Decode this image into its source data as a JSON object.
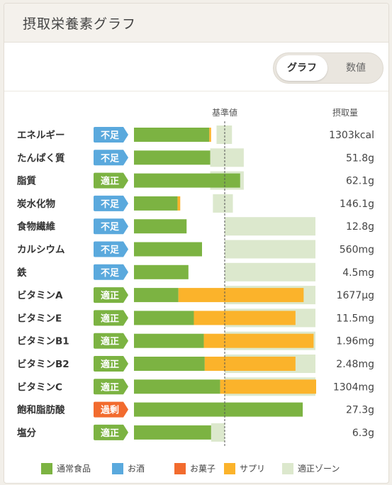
{
  "header": {
    "title": "摂取栄養素グラフ"
  },
  "toggle": {
    "graph_label": "グラフ",
    "value_label": "数値"
  },
  "colors": {
    "regular": "#7cb342",
    "alcohol": "#5aa9dd",
    "snack": "#f26b2e",
    "supplement": "#fbb32b",
    "zone": "#dce8cd",
    "status_low": "#5aa9dd",
    "status_ok": "#7cb342",
    "status_over": "#f26b2e"
  },
  "chart_data": {
    "type": "bar",
    "orientation": "horizontal",
    "stacked": true,
    "reference_label": "基準値",
    "intake_label": "摂取量",
    "rows": [
      {
        "name": "エネルギー",
        "status": "不足",
        "status_type": "low",
        "intake": "1303kcal",
        "regular": 0.83,
        "supplement": 0.02,
        "zone": [
          0.91,
          1.08
        ]
      },
      {
        "name": "たんぱく質",
        "status": "不足",
        "status_type": "low",
        "intake": "51.8g",
        "regular": 0.84,
        "supplement": 0,
        "zone": [
          0.84,
          1.21
        ]
      },
      {
        "name": "脂質",
        "status": "適正",
        "status_type": "ok",
        "intake": "62.1g",
        "regular": 1.17,
        "supplement": 0,
        "zone": [
          0.84,
          1.21
        ]
      },
      {
        "name": "炭水化物",
        "status": "不足",
        "status_type": "low",
        "intake": "146.1g",
        "regular": 0.48,
        "supplement": 0.03,
        "zone": [
          0.87,
          1.09
        ]
      },
      {
        "name": "食物繊維",
        "status": "不足",
        "status_type": "low",
        "intake": "12.8g",
        "regular": 0.58,
        "supplement": 0,
        "zone": [
          1.0,
          2.0
        ]
      },
      {
        "name": "カルシウム",
        "status": "不足",
        "status_type": "low",
        "intake": "560mg",
        "regular": 0.75,
        "supplement": 0,
        "zone": [
          1.0,
          2.0
        ]
      },
      {
        "name": "鉄",
        "status": "不足",
        "status_type": "low",
        "intake": "4.5mg",
        "regular": 0.6,
        "supplement": 0,
        "zone": [
          1.0,
          2.0
        ]
      },
      {
        "name": "ビタミンA",
        "status": "適正",
        "status_type": "ok",
        "intake": "1677μg",
        "regular": 0.49,
        "supplement": 1.38,
        "zone": [
          1.0,
          2.0
        ]
      },
      {
        "name": "ビタミンE",
        "status": "適正",
        "status_type": "ok",
        "intake": "11.5mg",
        "regular": 0.66,
        "supplement": 1.12,
        "zone": [
          1.0,
          2.0
        ]
      },
      {
        "name": "ビタミンB1",
        "status": "適正",
        "status_type": "ok",
        "intake": "1.96mg",
        "regular": 0.77,
        "supplement": 1.21,
        "zone": [
          1.0,
          2.0
        ]
      },
      {
        "name": "ビタミンB2",
        "status": "適正",
        "status_type": "ok",
        "intake": "2.48mg",
        "regular": 0.78,
        "supplement": 1.0,
        "zone": [
          1.0,
          2.0
        ]
      },
      {
        "name": "ビタミンC",
        "status": "適正",
        "status_type": "ok",
        "intake": "1304mg",
        "regular": 0.95,
        "supplement": 1.06,
        "zone": [
          1.0,
          2.0
        ]
      },
      {
        "name": "飽和脂肪酸",
        "status": "過剰",
        "status_type": "over",
        "intake": "27.3g",
        "regular": 1.86,
        "supplement": 0,
        "zone": [
          0,
          0
        ]
      },
      {
        "name": "塩分",
        "status": "適正",
        "status_type": "ok",
        "intake": "6.3g",
        "regular": 0.85,
        "supplement": 0,
        "zone": [
          0.85,
          1.0
        ]
      }
    ],
    "legend": [
      {
        "label": "通常食品",
        "color_key": "regular"
      },
      {
        "label": "お酒",
        "color_key": "alcohol"
      },
      {
        "label": "お菓子",
        "color_key": "snack"
      },
      {
        "label": "サプリ",
        "color_key": "supplement"
      },
      {
        "label": "適正ゾーン",
        "color_key": "zone"
      }
    ]
  }
}
